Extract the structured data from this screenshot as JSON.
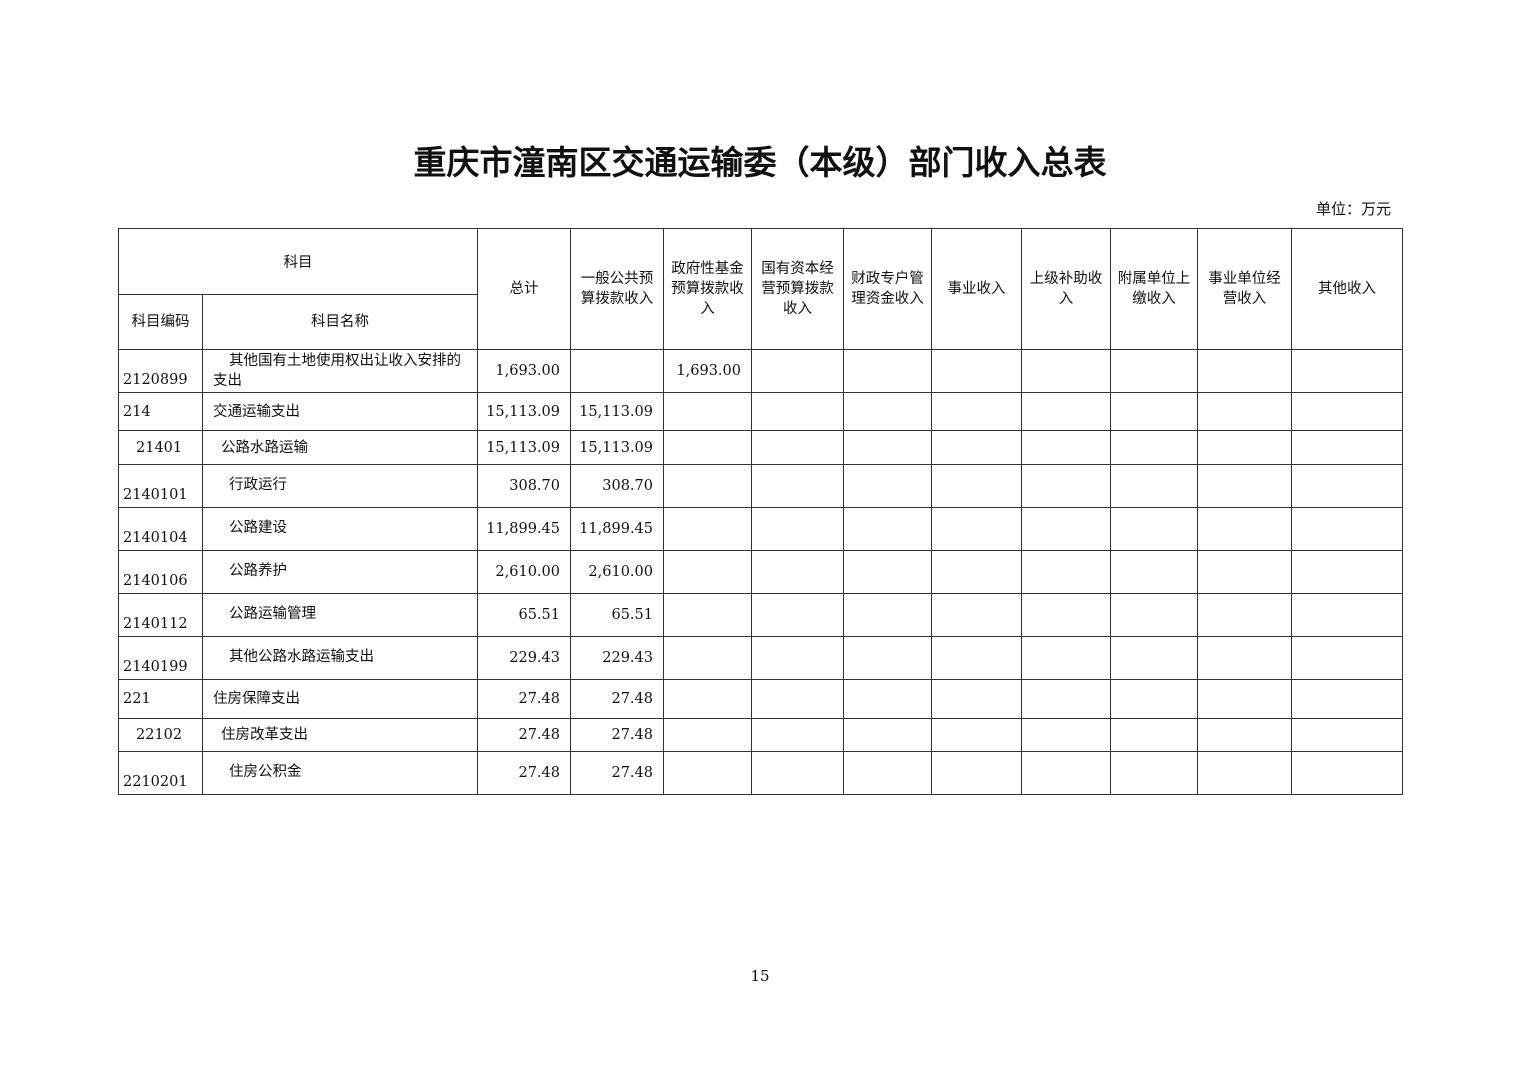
{
  "title": "重庆市潼南区交通运输委（本级）部门收入总表",
  "unit": "单位：万元",
  "headers": {
    "subject": "科目",
    "code": "科目编码",
    "name": "科目名称",
    "cols": [
      "总计",
      "一般公共预算拨款收入",
      "政府性基金预算拨款收入",
      "国有资本经营预算拨款收入",
      "财政专户管理资金收入",
      "事业收入",
      "上级补助收入",
      "附属单位上缴收入",
      "事业单位经营收入",
      "其他收入"
    ]
  },
  "rows": [
    {
      "code": "2120899",
      "name": "其他国有土地使用权出让收入安排的支出",
      "total": "1,693.00",
      "general": "",
      "fund": "1,693.00"
    },
    {
      "code": "214",
      "name": "交通运输支出",
      "total": "15,113.09",
      "general": "15,113.09",
      "fund": ""
    },
    {
      "code": "21401",
      "name": "公路水路运输",
      "total": "15,113.09",
      "general": "15,113.09",
      "fund": ""
    },
    {
      "code": "2140101",
      "name": "行政运行",
      "total": "308.70",
      "general": "308.70",
      "fund": ""
    },
    {
      "code": "2140104",
      "name": "公路建设",
      "total": "11,899.45",
      "general": "11,899.45",
      "fund": ""
    },
    {
      "code": "2140106",
      "name": "公路养护",
      "total": "2,610.00",
      "general": "2,610.00",
      "fund": ""
    },
    {
      "code": "2140112",
      "name": "公路运输管理",
      "total": "65.51",
      "general": "65.51",
      "fund": ""
    },
    {
      "code": "2140199",
      "name": "其他公路水路运输支出",
      "total": "229.43",
      "general": "229.43",
      "fund": ""
    },
    {
      "code": "221",
      "name": "住房保障支出",
      "total": "27.48",
      "general": "27.48",
      "fund": ""
    },
    {
      "code": "22102",
      "name": "住房改革支出",
      "total": "27.48",
      "general": "27.48",
      "fund": ""
    },
    {
      "code": "2210201",
      "name": "住房公积金",
      "total": "27.48",
      "general": "27.48",
      "fund": ""
    }
  ],
  "page_number": "15"
}
